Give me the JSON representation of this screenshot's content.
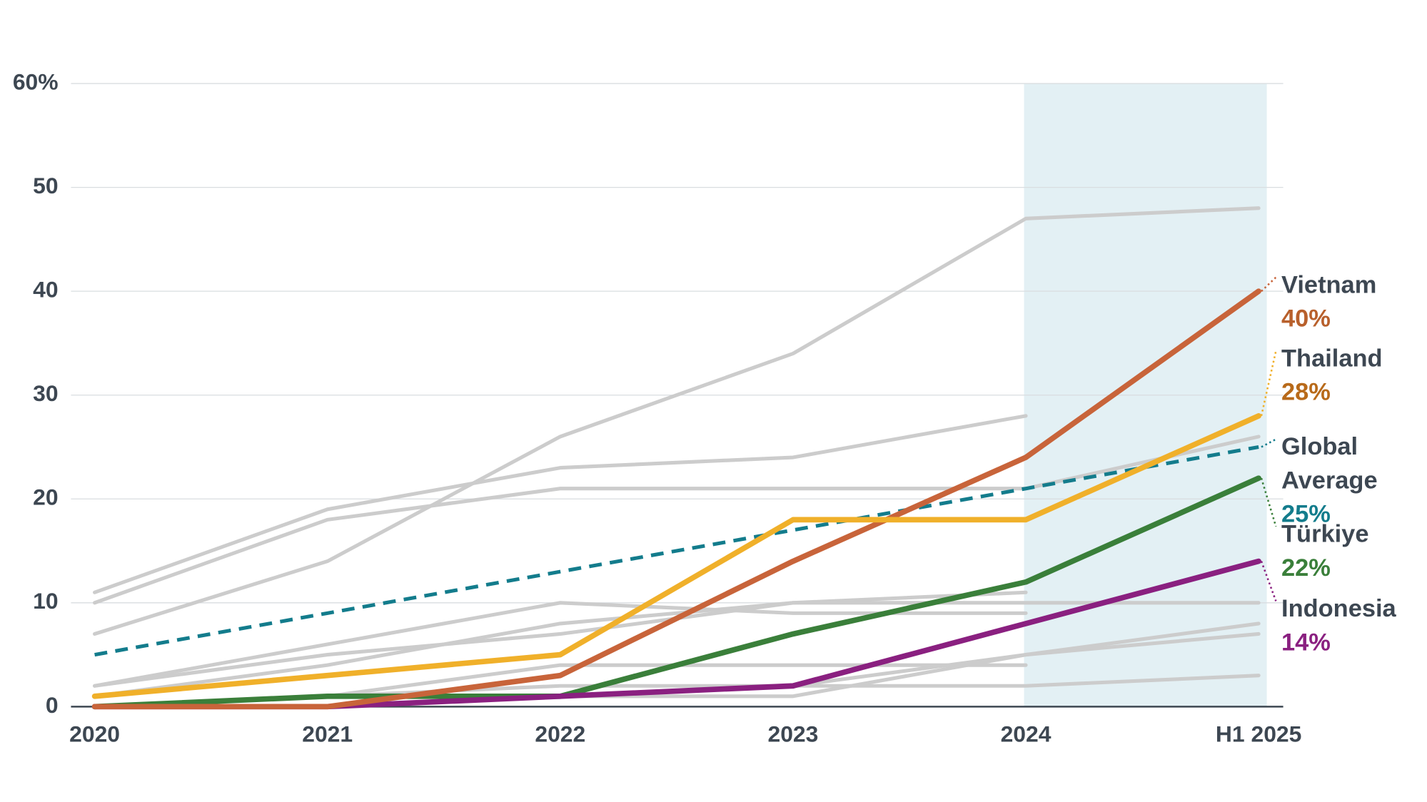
{
  "chart_data": {
    "type": "line",
    "categories": [
      "2020",
      "2021",
      "2022",
      "2023",
      "2024",
      "H1 2025"
    ],
    "ylim": [
      0,
      60
    ],
    "yticks": [
      0,
      10,
      20,
      30,
      40,
      50,
      {
        "value": 60,
        "label": "60%"
      }
    ],
    "grid": true,
    "series": [
      {
        "color": "#cccccc",
        "values": [
          11,
          19,
          23,
          24,
          28,
          null
        ]
      },
      {
        "color": "#cccccc",
        "values": [
          10,
          18,
          21,
          21,
          21,
          26
        ]
      },
      {
        "color": "#cccccc",
        "values": [
          7,
          14,
          26,
          34,
          47,
          48
        ]
      },
      {
        "color": "#cccccc",
        "values": [
          2,
          5,
          7,
          10,
          11,
          null
        ]
      },
      {
        "color": "#cccccc",
        "values": [
          2,
          6,
          10,
          9,
          9,
          null
        ]
      },
      {
        "color": "#cccccc",
        "values": [
          1,
          4,
          8,
          10,
          10,
          10
        ]
      },
      {
        "color": "#cccccc",
        "values": [
          0,
          1,
          4,
          4,
          4,
          null
        ]
      },
      {
        "color": "#cccccc",
        "values": [
          0,
          1,
          2,
          2,
          2,
          3
        ]
      },
      {
        "color": "#cccccc",
        "values": [
          0,
          0,
          1,
          1,
          5,
          8
        ]
      },
      {
        "color": "#cccccc",
        "values": [
          0,
          0,
          1,
          2,
          5,
          7
        ]
      },
      {
        "name": "Global Average",
        "color": "#137c8c",
        "label_color": "#137c8c",
        "style": "dashed",
        "values": [
          5,
          9,
          13,
          17,
          21,
          25
        ],
        "value_labels": [
          null,
          null,
          null,
          null,
          null,
          "25%"
        ]
      },
      {
        "name": "Türkiye",
        "color": "#3a7f3a",
        "label_color": "#3a7f3a",
        "values": [
          0,
          1,
          1,
          7,
          12,
          22
        ],
        "value_labels": [
          null,
          null,
          null,
          null,
          null,
          "22%"
        ]
      },
      {
        "name": "Indonesia",
        "color": "#8a2080",
        "label_color": "#8a2080",
        "values": [
          0,
          0,
          1,
          2,
          8,
          14
        ],
        "value_labels": [
          null,
          null,
          null,
          null,
          null,
          "14%"
        ]
      },
      {
        "name": "Vietnam",
        "color": "#c8643a",
        "label_color": "#b8602c",
        "values": [
          0,
          0,
          3,
          14,
          24,
          40
        ],
        "value_labels": [
          null,
          null,
          null,
          null,
          null,
          "40%"
        ]
      },
      {
        "name": "Thailand",
        "color": "#f0b02a",
        "label_color": "#b86a1a",
        "values": [
          1,
          3,
          5,
          18,
          18,
          28
        ],
        "value_labels": [
          null,
          null,
          null,
          null,
          null,
          "28%"
        ]
      }
    ]
  }
}
